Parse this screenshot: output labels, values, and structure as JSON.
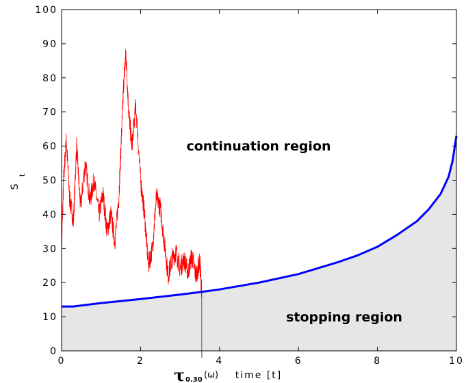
{
  "chart_data": {
    "type": "line",
    "xlabel": "time [t]",
    "ylabel": "S",
    "ylabel_sub": "t",
    "xlim": [
      0,
      10
    ],
    "ylim": [
      0,
      100
    ],
    "xticks": [
      "0",
      "2",
      "4",
      "6",
      "8",
      "10"
    ],
    "yticks": [
      "0",
      "10",
      "20",
      "30",
      "40",
      "50",
      "60",
      "70",
      "80",
      "90",
      "100"
    ],
    "annotations": {
      "continuation": "continuation region",
      "stopping": "stopping region",
      "stopping_time_symbol": "τ",
      "stopping_time_sub": "0.30",
      "stopping_time_arg": "(ω)"
    },
    "stopping_time": 3.55,
    "stopping_value": 17.3,
    "series": [
      {
        "role": "boundary",
        "color": "#0000ff",
        "x": [
          0,
          0.3,
          1,
          2,
          3,
          3.55,
          4,
          5,
          6,
          7,
          7.5,
          8,
          8.5,
          9,
          9.3,
          9.6,
          9.8,
          9.9,
          10
        ],
        "y": [
          13,
          13,
          14,
          15.2,
          16.5,
          17.3,
          18,
          20,
          22.5,
          26,
          28,
          30.5,
          34,
          38,
          41.5,
          46,
          51,
          55.5,
          63
        ]
      },
      {
        "role": "price-path",
        "color": "#ff0000",
        "x": [
          0,
          0.05,
          0.12,
          0.2,
          0.3,
          0.38,
          0.48,
          0.6,
          0.72,
          0.82,
          0.95,
          1.05,
          1.15,
          1.25,
          1.35,
          1.45,
          1.52,
          1.58,
          1.63,
          1.7,
          1.78,
          1.88,
          2.0,
          2.1,
          2.2,
          2.3,
          2.4,
          2.5,
          2.6,
          2.7,
          2.8,
          2.9,
          3.0,
          3.1,
          3.2,
          3.3,
          3.4,
          3.5,
          3.55
        ],
        "y": [
          30,
          50,
          62,
          45,
          38,
          60,
          42,
          55,
          44,
          50,
          40,
          46,
          35,
          40,
          32,
          45,
          64,
          80,
          87,
          70,
          60,
          72,
          50,
          40,
          25,
          30,
          45,
          42,
          32,
          22,
          27,
          29,
          24,
          27,
          23,
          28,
          22,
          26,
          17.3
        ]
      }
    ]
  }
}
